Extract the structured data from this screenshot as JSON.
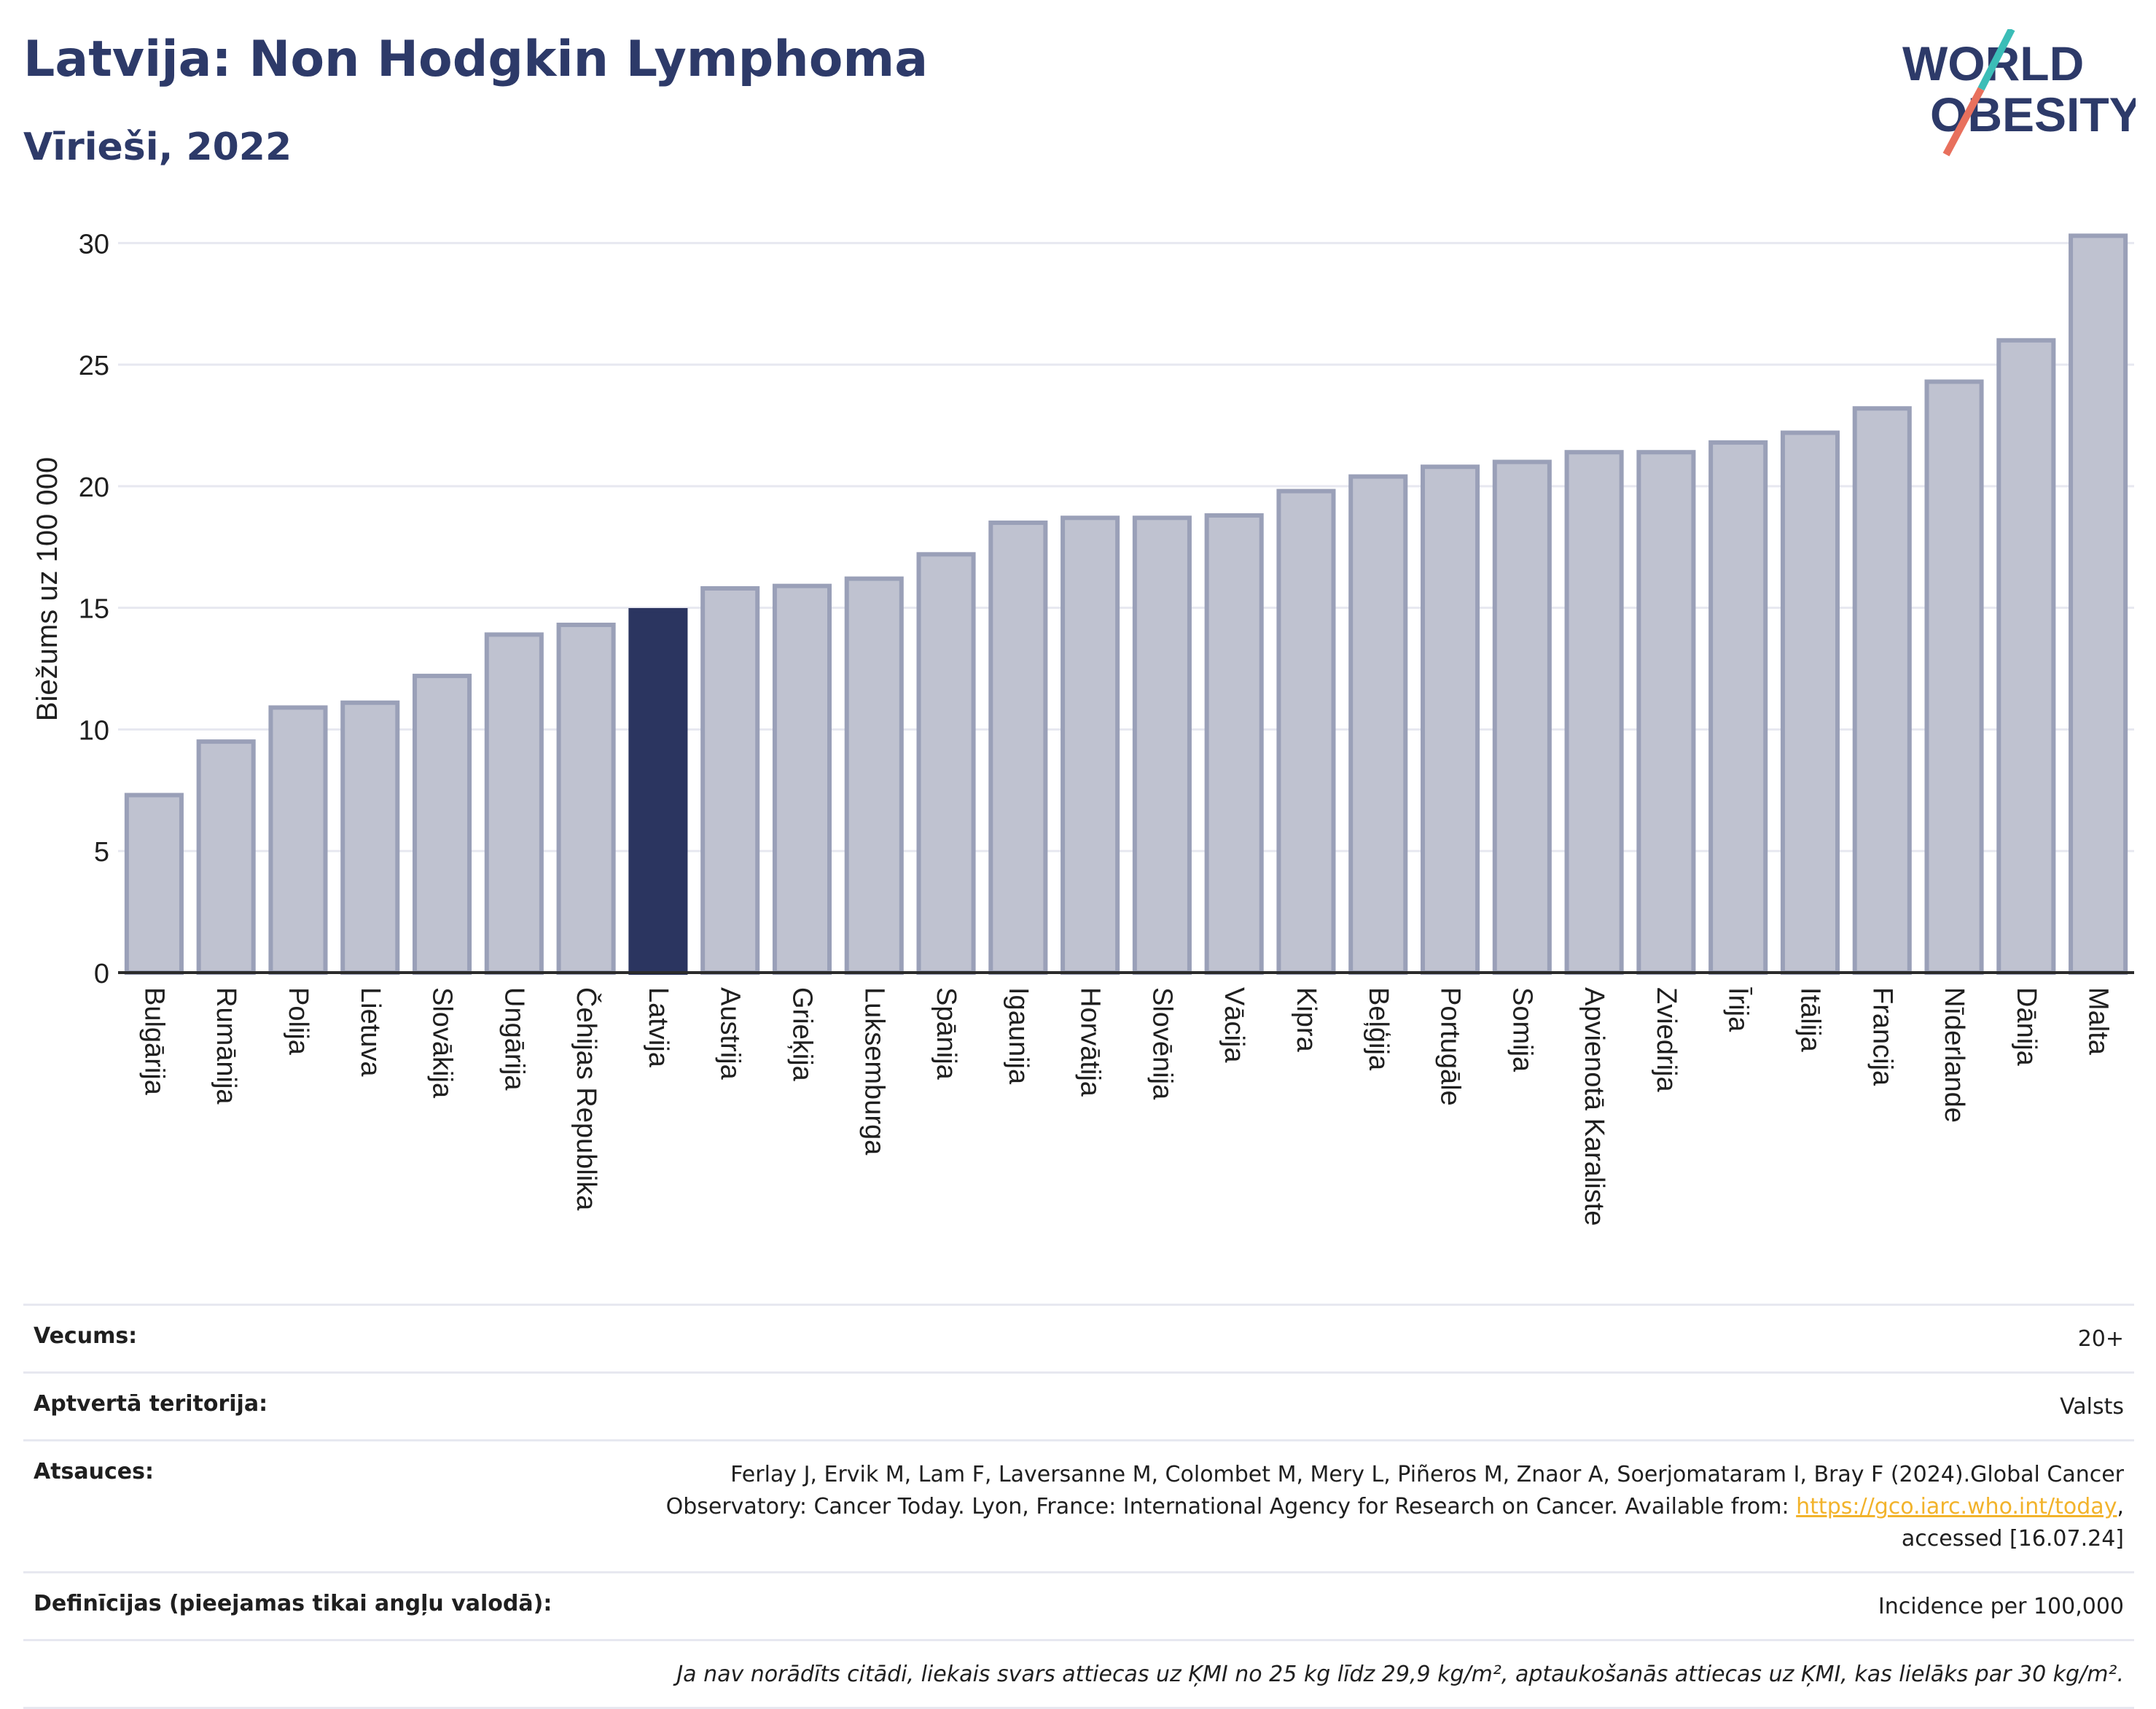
{
  "header": {
    "title": "Latvija: Non Hodgkin Lymphoma",
    "subtitle": "Vīrieši, 2022",
    "logo_line1": "WORLD",
    "logo_line2": "OBESITY"
  },
  "colors": {
    "title": "#2d3a69",
    "bar": "#bfc2d0",
    "bar_border": "#9aa0b8",
    "highlight": "#2b3560",
    "grid": "#e7e8f0",
    "logo_teal": "#3bbdb7",
    "logo_coral": "#e8705d"
  },
  "chart_data": {
    "type": "bar",
    "title": "Latvija: Non Hodgkin Lymphoma",
    "subtitle": "Vīrieši, 2022",
    "xlabel": "",
    "ylabel": "Biežums uz 100 000",
    "ylim": [
      0,
      31
    ],
    "yticks": [
      0,
      5,
      10,
      15,
      20,
      25,
      30
    ],
    "grid": true,
    "highlight": "Latvija",
    "categories": [
      "Bulgārija",
      "Rumānija",
      "Polija",
      "Lietuva",
      "Slovākija",
      "Ungārija",
      "Čehijas Republika",
      "Latvija",
      "Austrija",
      "Grieķija",
      "Luksemburga",
      "Spānija",
      "Igaunija",
      "Horvātija",
      "Slovēnija",
      "Vācija",
      "Kipra",
      "Beļģija",
      "Portugāle",
      "Somija",
      "Apvienotā Karaliste",
      "Zviedrija",
      "Īrija",
      "Itālija",
      "Francija",
      "Nīderlande",
      "Dānija",
      "Malta"
    ],
    "values": [
      7.3,
      9.5,
      10.9,
      11.1,
      12.2,
      13.9,
      14.3,
      14.9,
      15.8,
      15.9,
      16.2,
      17.2,
      18.5,
      18.7,
      18.7,
      18.8,
      19.8,
      20.4,
      20.8,
      21.0,
      21.4,
      21.4,
      21.8,
      22.2,
      23.2,
      24.3,
      26.0,
      30.3
    ]
  },
  "info": {
    "rows": [
      {
        "key": "Vecums:",
        "value": "20+"
      },
      {
        "key": "Aptvertā teritorija:",
        "value": "Valsts"
      },
      {
        "key": "Atsauces:",
        "value_before": "Ferlay J, Ervik M, Lam F, Laversanne M, Colombet M, Mery L, Piñeros M, Znaor A, Soerjomataram I, Bray F (2024).Global Cancer Observatory: Cancer Today. Lyon, France: International Agency for Research on Cancer. Available from: ",
        "link": "https://gco.iarc.who.int/today",
        "value_after": ", accessed [16.07.24]"
      },
      {
        "key": "Definīcijas (pieejamas tikai angļu valodā):",
        "value": "Incidence per 100,000"
      },
      {
        "key": "",
        "value": "Ja nav norādīts citādi, liekais svars attiecas uz ĶMI no 25 kg līdz 29,9 kg/m², aptaukošanās attiecas uz ĶMI, kas lielāks par 30 kg/m²."
      }
    ]
  }
}
